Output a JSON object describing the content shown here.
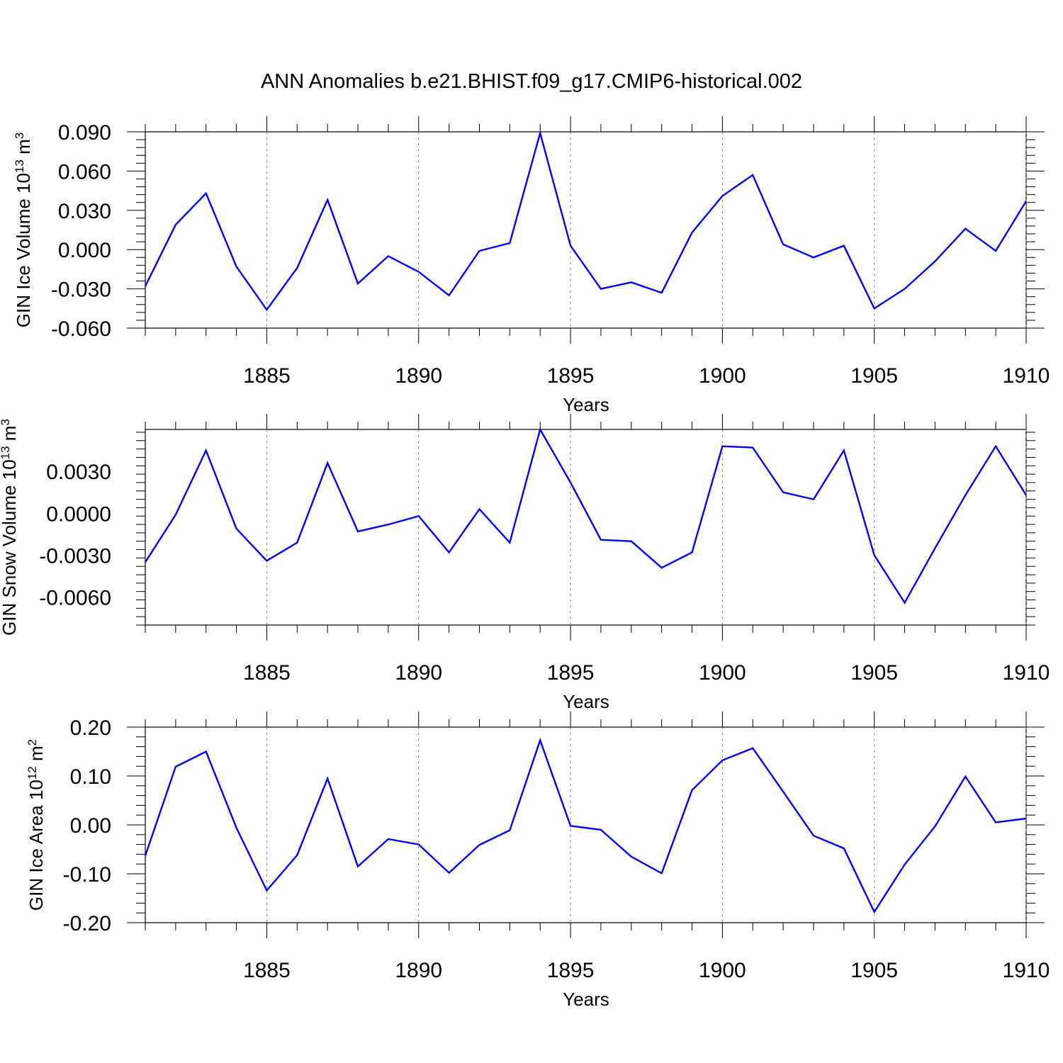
{
  "figure": {
    "title": "ANN Anomalies b.e21.BHIST.f09_g17.CMIP6-historical.002"
  },
  "chart_data": [
    {
      "type": "line",
      "title": "ANN Anomalies b.e21.BHIST.f09_g17.CMIP6-historical.002",
      "xlabel": "Years",
      "ylabel": "GIN Ice Volume 10",
      "ylabel_sup": "13",
      "ylabel_unit": " m",
      "ylabel_unit_sup": "3",
      "xlim": [
        1881,
        1910
      ],
      "ylim": [
        -0.06,
        0.09
      ],
      "xticks": [
        1885,
        1890,
        1895,
        1900,
        1905,
        1910
      ],
      "xtick_labels": [
        "1885",
        "1890",
        "1895",
        "1900",
        "1905",
        "1910"
      ],
      "yticks": [
        -0.06,
        -0.03,
        0.0,
        0.03,
        0.06,
        0.09
      ],
      "ytick_labels": [
        "-0.060",
        "-0.030",
        "0.000",
        "0.030",
        "0.060",
        "0.090"
      ],
      "line_color": "#0000ff",
      "grid_color": "#777777",
      "series": [
        {
          "name": "GIN Ice Volume",
          "x": [
            1881,
            1882,
            1883,
            1884,
            1885,
            1886,
            1887,
            1888,
            1889,
            1890,
            1891,
            1892,
            1893,
            1894,
            1895,
            1896,
            1897,
            1898,
            1899,
            1900,
            1901,
            1902,
            1903,
            1904,
            1905,
            1906,
            1907,
            1908,
            1909,
            1910
          ],
          "values": [
            -0.028,
            0.019,
            0.043,
            -0.013,
            -0.046,
            -0.014,
            0.038,
            -0.026,
            -0.005,
            -0.017,
            -0.035,
            -0.001,
            0.005,
            0.089,
            0.003,
            -0.03,
            -0.025,
            -0.033,
            0.013,
            0.041,
            0.057,
            0.004,
            -0.006,
            0.003,
            -0.045,
            -0.03,
            -0.009,
            0.016,
            -0.001,
            0.037
          ]
        }
      ]
    },
    {
      "type": "line",
      "xlabel": "Years",
      "ylabel": "GIN Snow Volume 10",
      "ylabel_sup": "13",
      "ylabel_unit": " m",
      "ylabel_unit_sup": "3",
      "xlim": [
        1881,
        1910
      ],
      "ylim": [
        -0.008,
        0.006
      ],
      "xticks": [
        1885,
        1890,
        1895,
        1900,
        1905,
        1910
      ],
      "xtick_labels": [
        "1885",
        "1890",
        "1895",
        "1900",
        "1905",
        "1910"
      ],
      "yticks": [
        -0.006,
        -0.003,
        0.0,
        0.003
      ],
      "ytick_labels": [
        "-0.0060",
        "-0.0030",
        "0.0000",
        "0.0030"
      ],
      "line_color": "#0000ff",
      "grid_color": "#777777",
      "series": [
        {
          "name": "GIN Snow Volume",
          "x": [
            1881,
            1882,
            1883,
            1884,
            1885,
            1886,
            1887,
            1888,
            1889,
            1890,
            1891,
            1892,
            1893,
            1894,
            1895,
            1896,
            1897,
            1898,
            1899,
            1900,
            1901,
            1902,
            1903,
            1904,
            1905,
            1906,
            1907,
            1908,
            1909,
            1910
          ],
          "values": [
            -0.0035,
            -0.0001,
            0.0045,
            -0.0011,
            -0.0034,
            -0.0021,
            0.0036,
            -0.0013,
            -0.0008,
            -0.0002,
            -0.0028,
            0.0003,
            -0.0021,
            0.006,
            0.0022,
            -0.0019,
            -0.002,
            -0.0039,
            -0.0028,
            0.0048,
            0.0047,
            0.0015,
            0.001,
            0.0045,
            -0.003,
            -0.0064,
            -0.0025,
            0.0013,
            0.0048,
            0.0013
          ]
        }
      ]
    },
    {
      "type": "line",
      "xlabel": "Years",
      "ylabel": "GIN Ice Area 10",
      "ylabel_sup": "12",
      "ylabel_unit": " m",
      "ylabel_unit_sup": "2",
      "xlim": [
        1881,
        1910
      ],
      "ylim": [
        -0.2,
        0.2
      ],
      "xticks": [
        1885,
        1890,
        1895,
        1900,
        1905,
        1910
      ],
      "xtick_labels": [
        "1885",
        "1890",
        "1895",
        "1900",
        "1905",
        "1910"
      ],
      "yticks": [
        -0.2,
        -0.1,
        0.0,
        0.1,
        0.2
      ],
      "ytick_labels": [
        "-0.20",
        "-0.10",
        "0.00",
        "0.10",
        "0.20"
      ],
      "line_color": "#0000ff",
      "grid_color": "#777777",
      "series": [
        {
          "name": "GIN Ice Area",
          "x": [
            1881,
            1882,
            1883,
            1884,
            1885,
            1886,
            1887,
            1888,
            1889,
            1890,
            1891,
            1892,
            1893,
            1894,
            1895,
            1896,
            1897,
            1898,
            1899,
            1900,
            1901,
            1902,
            1903,
            1904,
            1905,
            1906,
            1907,
            1908,
            1909,
            1910
          ],
          "values": [
            -0.063,
            0.119,
            0.15,
            -0.006,
            -0.134,
            -0.062,
            0.095,
            -0.085,
            -0.029,
            -0.04,
            -0.098,
            -0.041,
            -0.011,
            0.173,
            -0.002,
            -0.01,
            -0.065,
            -0.099,
            0.071,
            0.132,
            0.157,
            0.068,
            -0.022,
            -0.048,
            -0.178,
            -0.081,
            -0.003,
            0.099,
            0.005,
            0.013
          ]
        }
      ]
    }
  ]
}
